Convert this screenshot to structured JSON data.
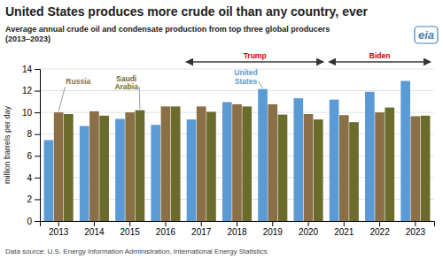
{
  "chart_data": {
    "type": "bar",
    "title": "United States produces more crude oil than any country, ever",
    "subtitle": "Average annual crude oil and condensate production from top three global producers\n(2013–2023)",
    "ylabel": "million barrels per day",
    "source": "Data source: U.S. Energy Information Administration,  International Energy Statistics",
    "categories": [
      "2013",
      "2014",
      "2015",
      "2016",
      "2017",
      "2018",
      "2019",
      "2020",
      "2021",
      "2022",
      "2023"
    ],
    "series": [
      {
        "name": "United\nStates",
        "color": "#5B9BD5",
        "values": [
          7.45,
          8.75,
          9.4,
          8.85,
          9.35,
          10.95,
          12.15,
          11.3,
          11.18,
          11.9,
          12.9
        ]
      },
      {
        "name": "Russia",
        "color": "#8B6F47",
        "values": [
          10.0,
          10.1,
          10.0,
          10.55,
          10.55,
          10.75,
          10.75,
          9.85,
          9.75,
          10.0,
          9.65
        ]
      },
      {
        "name": "Saudi\nArabia",
        "color": "#6B6B2C",
        "values": [
          9.85,
          9.7,
          10.2,
          10.55,
          10.05,
          10.55,
          9.8,
          9.35,
          9.1,
          10.45,
          9.7
        ]
      }
    ],
    "annotations": [
      "Trump",
      "Biden",
      "eia"
    ],
    "ylim": [
      0,
      14
    ],
    "yticks": [
      0,
      2,
      4,
      6,
      8,
      10,
      12,
      14
    ],
    "grid": true
  }
}
